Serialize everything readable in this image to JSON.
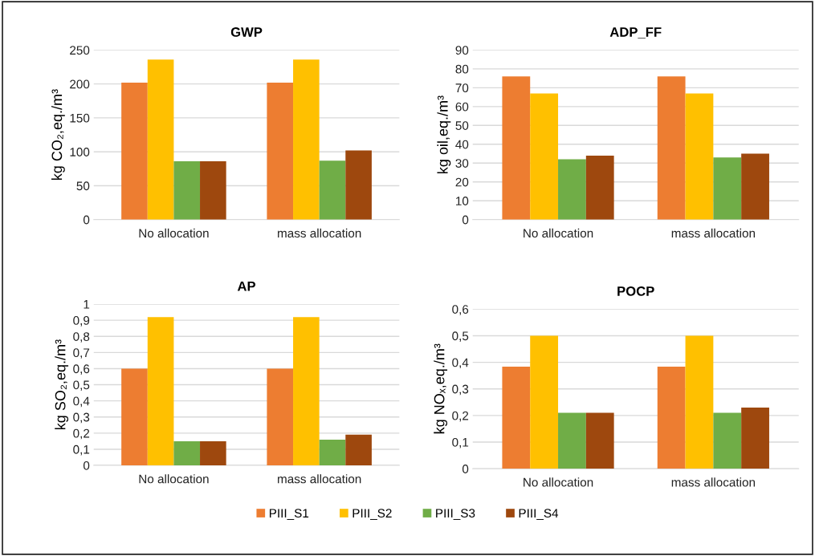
{
  "chart_data": [
    {
      "type": "bar",
      "title": "GWP",
      "ylabel": "kg CO₂,eq./m³",
      "categories": [
        "No allocation",
        "mass allocation"
      ],
      "ylim": [
        0,
        250
      ],
      "yticks": [
        0,
        50,
        100,
        150,
        200,
        250
      ],
      "grid": "y",
      "legend": "bottom",
      "series": [
        {
          "name": "PIII_S1",
          "color": "#ed7d31",
          "values": [
            202,
            202
          ]
        },
        {
          "name": "PIII_S2",
          "color": "#ffc000",
          "values": [
            236,
            236
          ]
        },
        {
          "name": "PIII_S3",
          "color": "#70ad47",
          "values": [
            86,
            87
          ]
        },
        {
          "name": "PIII_S4",
          "color": "#9e480e",
          "values": [
            86,
            102
          ]
        }
      ]
    },
    {
      "type": "bar",
      "title": "ADP_FF",
      "ylabel": "kg oil,eq./m³",
      "categories": [
        "No allocation",
        "mass allocation"
      ],
      "ylim": [
        0,
        90
      ],
      "yticks": [
        0,
        10,
        20,
        30,
        40,
        50,
        60,
        70,
        80,
        90
      ],
      "grid": "y",
      "legend": "bottom",
      "series": [
        {
          "name": "PIII_S1",
          "color": "#ed7d31",
          "values": [
            76,
            76
          ]
        },
        {
          "name": "PIII_S2",
          "color": "#ffc000",
          "values": [
            67,
            67
          ]
        },
        {
          "name": "PIII_S3",
          "color": "#70ad47",
          "values": [
            32,
            33
          ]
        },
        {
          "name": "PIII_S4",
          "color": "#9e480e",
          "values": [
            34,
            35
          ]
        }
      ]
    },
    {
      "type": "bar",
      "title": "AP",
      "ylabel": "kg SO₂,eq./m³",
      "categories": [
        "No allocation",
        "mass allocation"
      ],
      "ylim": [
        0,
        1
      ],
      "yticks": [
        0,
        {
          "value": 0.1,
          "label": "0,1"
        },
        {
          "value": 0.2,
          "label": "0,2"
        },
        {
          "value": 0.3,
          "label": "0,3"
        },
        {
          "value": 0.4,
          "label": "0,4"
        },
        {
          "value": 0.5,
          "label": "0,5"
        },
        {
          "value": 0.6,
          "label": "0,6"
        },
        {
          "value": 0.7,
          "label": "0,7"
        },
        {
          "value": 0.8,
          "label": "0,8"
        },
        {
          "value": 0.9,
          "label": "0,9"
        },
        1
      ],
      "grid": "y",
      "legend": "bottom",
      "series": [
        {
          "name": "PIII_S1",
          "color": "#ed7d31",
          "values": [
            0.6,
            0.6
          ]
        },
        {
          "name": "PIII_S2",
          "color": "#ffc000",
          "values": [
            0.92,
            0.92
          ]
        },
        {
          "name": "PIII_S3",
          "color": "#70ad47",
          "values": [
            0.15,
            0.16
          ]
        },
        {
          "name": "PIII_S4",
          "color": "#9e480e",
          "values": [
            0.15,
            0.19
          ]
        }
      ]
    },
    {
      "type": "bar",
      "title": "POCP",
      "ylabel": "kg NOₓ,eq./m³",
      "categories": [
        "No allocation",
        "mass allocation"
      ],
      "ylim": [
        0,
        0.6
      ],
      "yticks": [
        0,
        {
          "value": 0.1,
          "label": "0,1"
        },
        {
          "value": 0.2,
          "label": "0,2"
        },
        {
          "value": 0.3,
          "label": "0,3"
        },
        {
          "value": 0.4,
          "label": "0,4"
        },
        {
          "value": 0.5,
          "label": "0,5"
        },
        {
          "value": 0.6,
          "label": "0,6"
        }
      ],
      "grid": "y",
      "legend": "bottom",
      "series": [
        {
          "name": "PIII_S1",
          "color": "#ed7d31",
          "values": [
            0.384,
            0.384
          ]
        },
        {
          "name": "PIII_S2",
          "color": "#ffc000",
          "values": [
            0.5,
            0.5
          ]
        },
        {
          "name": "PIII_S3",
          "color": "#70ad47",
          "values": [
            0.21,
            0.21
          ]
        },
        {
          "name": "PIII_S4",
          "color": "#9e480e",
          "values": [
            0.21,
            0.23
          ]
        }
      ]
    }
  ]
}
